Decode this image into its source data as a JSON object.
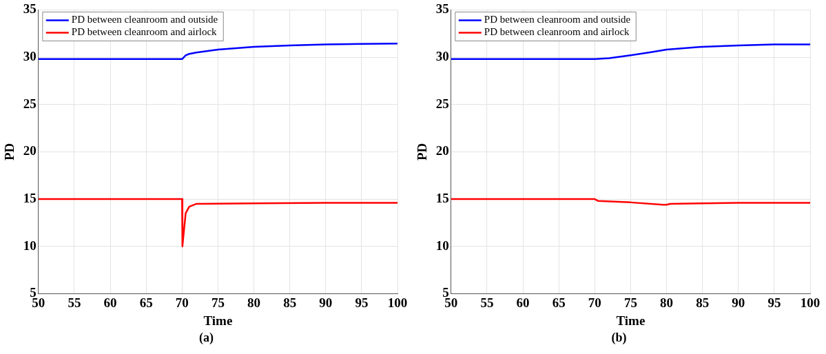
{
  "chart_data": [
    {
      "type": "line",
      "xlabel": "Time",
      "ylabel": "PD",
      "annotations": [
        "(a)"
      ],
      "xlim": [
        50,
        100
      ],
      "xticks": [
        50,
        55,
        60,
        65,
        70,
        75,
        80,
        85,
        90,
        95,
        100
      ],
      "ylim": [
        5,
        35
      ],
      "yticks": [
        5,
        10,
        15,
        20,
        25,
        30,
        35
      ],
      "grid": true,
      "legend": "top left",
      "marker": "none",
      "line_style": "solid",
      "series": [
        {
          "name": "PD between cleanroom and outside",
          "color": "#0000ff",
          "x": [
            50,
            70,
            70.5,
            71,
            72,
            75,
            80,
            85,
            90,
            95,
            100
          ],
          "values": [
            29.8,
            29.8,
            30.2,
            30.35,
            30.5,
            30.8,
            31.1,
            31.25,
            31.35,
            31.4,
            31.45
          ]
        },
        {
          "name": "PD between cleanroom and airlock",
          "color": "#ff0000",
          "x": [
            50,
            70,
            70.05,
            70.5,
            71,
            72,
            80,
            90,
            100
          ],
          "values": [
            15,
            15,
            10,
            13.5,
            14.2,
            14.5,
            14.55,
            14.6,
            14.6
          ]
        }
      ]
    },
    {
      "type": "line",
      "xlabel": "Time",
      "ylabel": "PD",
      "annotations": [
        "(b)"
      ],
      "xlim": [
        50,
        100
      ],
      "xticks": [
        50,
        55,
        60,
        65,
        70,
        75,
        80,
        85,
        90,
        95,
        100
      ],
      "ylim": [
        5,
        35
      ],
      "yticks": [
        5,
        10,
        15,
        20,
        25,
        30,
        35
      ],
      "grid": true,
      "legend": "top left",
      "marker": "none",
      "line_style": "solid",
      "series": [
        {
          "name": "PD between cleanroom and outside",
          "color": "#0000ff",
          "x": [
            50,
            70,
            72,
            75,
            78,
            80,
            85,
            90,
            95,
            100
          ],
          "values": [
            29.8,
            29.8,
            29.9,
            30.2,
            30.55,
            30.8,
            31.1,
            31.25,
            31.35,
            31.35
          ]
        },
        {
          "name": "PD between cleanroom and airlock",
          "color": "#ff0000",
          "x": [
            50,
            70,
            70.5,
            75,
            79.5,
            80,
            80.5,
            85,
            90,
            100
          ],
          "values": [
            15,
            15,
            14.8,
            14.65,
            14.4,
            14.4,
            14.5,
            14.55,
            14.6,
            14.6
          ]
        }
      ]
    }
  ]
}
